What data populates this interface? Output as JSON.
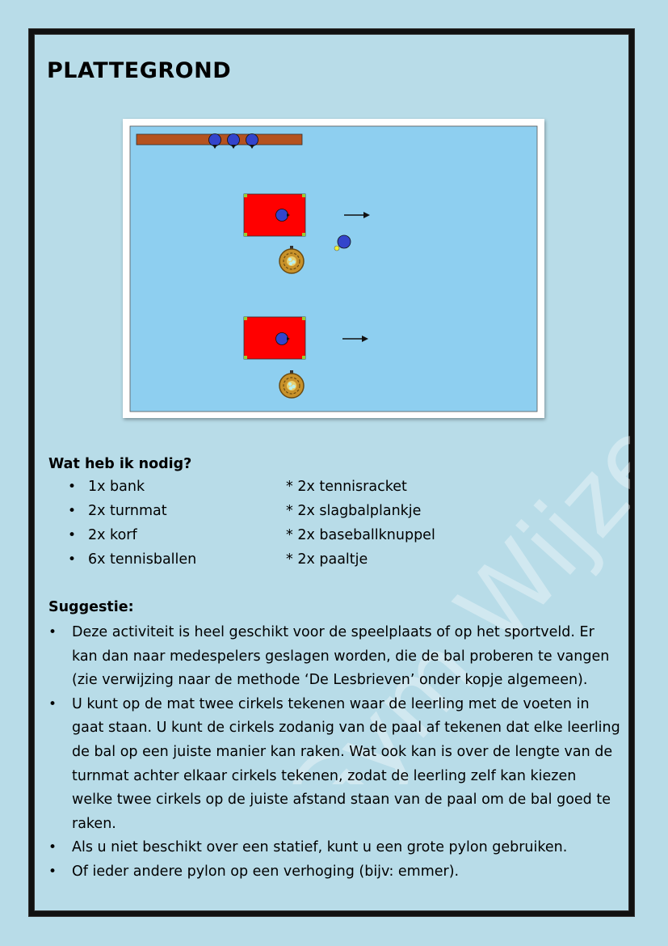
{
  "page": {
    "title": "PLATTEGROND"
  },
  "watermark": {
    "text": "Gym Wijzer ®"
  },
  "needs": {
    "heading": "Wat heb ik nodig?",
    "left_items": [
      "1x bank",
      "2x turnmat",
      "2x korf",
      "6x tennisballen"
    ],
    "right_items": [
      "* 2x tennisracket",
      "* 2x slagbalplankje",
      "* 2x baseballknuppel",
      "* 2x paaltje"
    ]
  },
  "suggestion": {
    "heading": "Suggestie:",
    "items": [
      "Deze activiteit is heel geschikt voor de speelplaats of op het sportveld. Er kan dan naar medespelers geslagen worden, die de bal proberen te vangen (zie verwijzing naar de methode ‘De Lesbrieven’ onder kopje algemeen).",
      "U kunt op de mat twee cirkels tekenen waar de leerling met de voeten in gaat staan. U kunt de cirkels zodanig van de paal af tekenen dat elke leerling de bal op een juiste manier kan raken. Wat ook kan is over de lengte van de turnmat achter elkaar cirkels tekenen, zodat de leerling zelf kan kiezen welke twee cirkels op de juiste afstand staan van de paal om de bal goed te raken.",
      "Als u niet beschikt over een statief, kunt u een grote pylon gebruiken.",
      "Of ieder andere pylon op een verhoging (bijv: emmer)."
    ]
  },
  "colors": {
    "page_bg": "#b8dce8",
    "field": "#8ecff0",
    "mat": "#ff0000",
    "bench": "#b5521f",
    "player": "#3344cc",
    "basket": "#c8922a",
    "ball": "#f0f030"
  }
}
